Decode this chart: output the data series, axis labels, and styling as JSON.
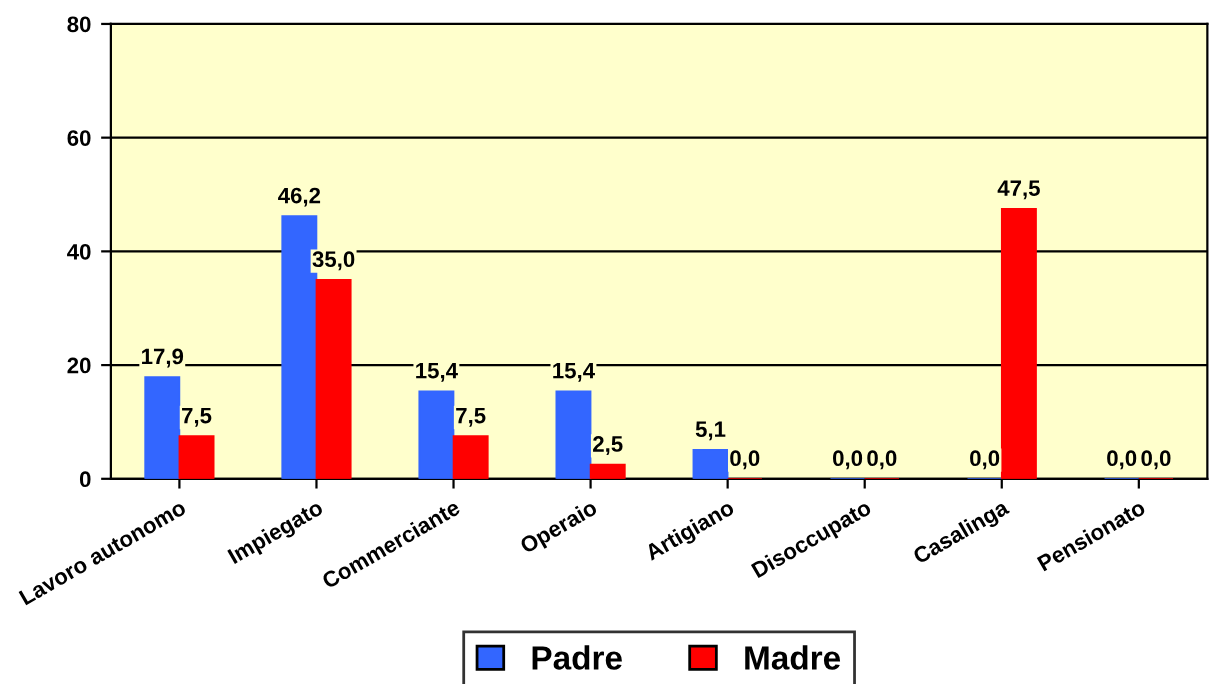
{
  "chart_data": {
    "type": "bar",
    "categories": [
      "Lavoro autonomo",
      "Impiegato",
      "Commerciante",
      "Operaio",
      "Artigiano",
      "Disoccupato",
      "Casalinga",
      "Pensionato"
    ],
    "series": [
      {
        "name": "Padre",
        "color": "#3366ff",
        "values": [
          17.9,
          46.2,
          15.4,
          15.4,
          5.1,
          0.0,
          0.0,
          0.0
        ],
        "value_labels": [
          "17,9",
          "46,2",
          "15,4",
          "15,4",
          "5,1",
          "0,0",
          "0,0",
          "0,0"
        ]
      },
      {
        "name": "Madre",
        "color": "#ff0000",
        "values": [
          7.5,
          35.0,
          7.5,
          2.5,
          0.0,
          0.0,
          47.5,
          0.0
        ],
        "value_labels": [
          "7,5",
          "35,0",
          "7,5",
          "2,5",
          "0,0",
          "0,0",
          "47,5",
          "0,0"
        ]
      }
    ],
    "ylim": [
      0,
      80
    ],
    "yticks": [
      0,
      20,
      40,
      60,
      80
    ],
    "grid": "y",
    "legend": "bottom"
  }
}
